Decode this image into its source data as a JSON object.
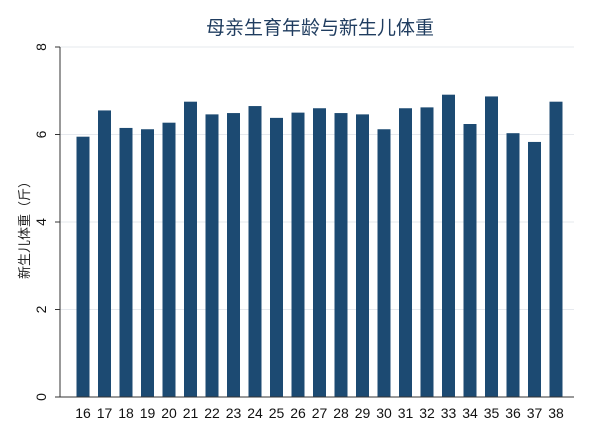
{
  "chart_data": {
    "type": "bar",
    "title": "母亲生育年龄与新生儿体重",
    "xlabel": "",
    "ylabel": "新生儿体重（斤）",
    "categories": [
      "16",
      "17",
      "18",
      "19",
      "20",
      "21",
      "22",
      "23",
      "24",
      "25",
      "26",
      "27",
      "28",
      "29",
      "30",
      "31",
      "32",
      "33",
      "34",
      "35",
      "36",
      "37",
      "38"
    ],
    "values": [
      5.95,
      6.55,
      6.15,
      6.12,
      6.27,
      6.75,
      6.46,
      6.49,
      6.65,
      6.38,
      6.5,
      6.6,
      6.49,
      6.46,
      6.12,
      6.6,
      6.62,
      6.91,
      6.24,
      6.87,
      6.03,
      5.83,
      6.75
    ],
    "ylim": [
      0,
      8
    ],
    "yticks": [
      0,
      2,
      4,
      6,
      8
    ],
    "grid": true,
    "colors": {
      "bar": "#1c4a72",
      "title": "#1f3c5f",
      "grid": "#e6e9ee"
    }
  }
}
